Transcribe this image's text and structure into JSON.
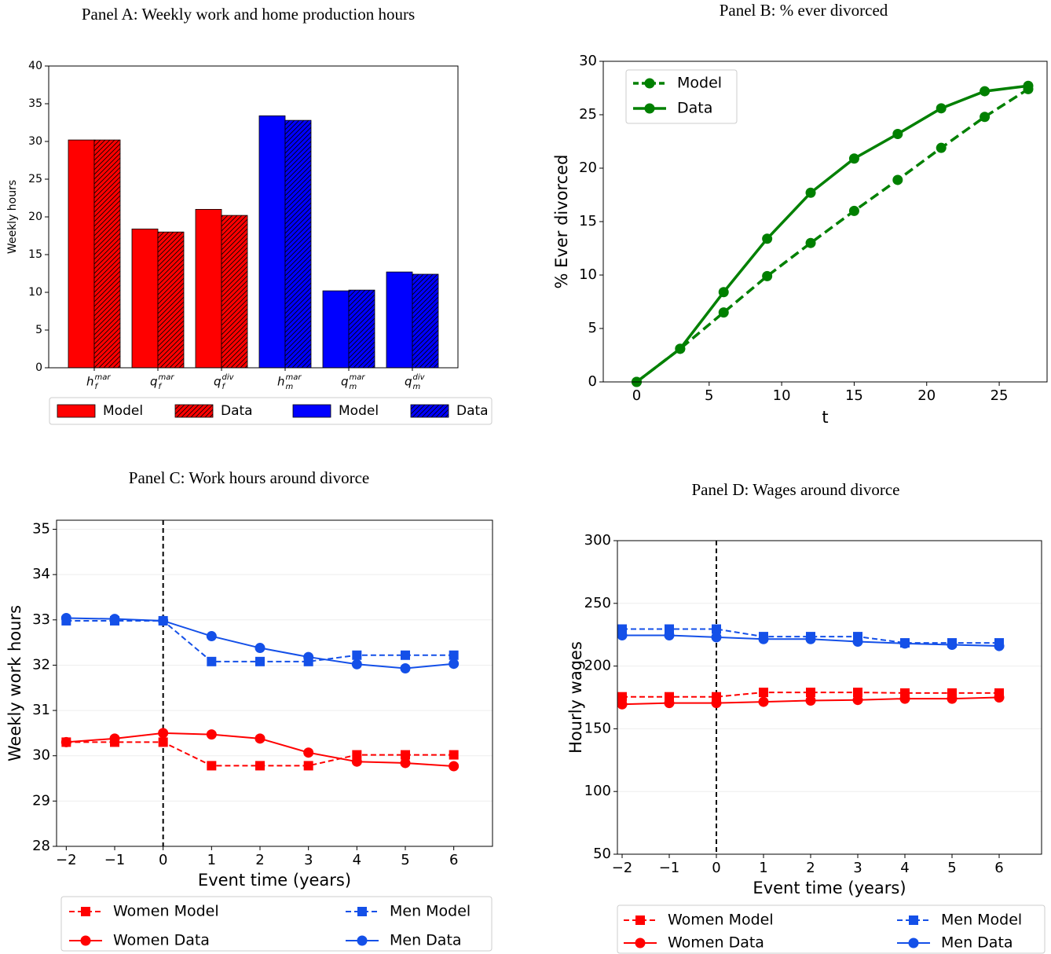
{
  "chart_data": [
    {
      "type": "bar",
      "title": "Panel A: Weekly work and home production hours",
      "ylabel": "Weekly hours",
      "categories": [
        {
          "base": "h",
          "sub": "f",
          "sup": "mar"
        },
        {
          "base": "q",
          "sub": "f",
          "sup": "mar"
        },
        {
          "base": "q",
          "sub": "f",
          "sup": "div"
        },
        {
          "base": "h",
          "sub": "m",
          "sup": "mar"
        },
        {
          "base": "q",
          "sub": "m",
          "sup": "mar"
        },
        {
          "base": "q",
          "sub": "m",
          "sup": "div"
        }
      ],
      "series": [
        {
          "name": "Model",
          "color": "#ff0000",
          "hatch": false,
          "values": [
            30.2,
            18.4,
            21.0,
            null,
            null,
            null
          ]
        },
        {
          "name": "Data",
          "color": "#ff0000",
          "hatch": true,
          "values": [
            30.2,
            18.0,
            20.2,
            null,
            null,
            null
          ]
        },
        {
          "name": "Model",
          "color": "#0000ff",
          "hatch": false,
          "values": [
            null,
            null,
            null,
            33.4,
            10.2,
            12.7
          ]
        },
        {
          "name": "Data",
          "color": "#0000ff",
          "hatch": true,
          "values": [
            null,
            null,
            null,
            32.8,
            10.3,
            12.4
          ]
        }
      ],
      "ylim": [
        0,
        40
      ],
      "yticks": [
        0,
        5,
        10,
        15,
        20,
        25,
        30,
        35,
        40
      ],
      "legend": "lower center"
    },
    {
      "type": "line",
      "title": "Panel B: % ever divorced",
      "xlabel": "t",
      "ylabel": "% Ever divorced",
      "x": [
        0,
        3,
        6,
        9,
        12,
        15,
        18,
        21,
        24,
        27
      ],
      "series": [
        {
          "name": "Model",
          "color": "#008000",
          "linestyle": "dashed",
          "marker": "o",
          "values": [
            0,
            3.1,
            6.5,
            9.9,
            13.0,
            16.0,
            18.9,
            21.9,
            24.8,
            27.4
          ]
        },
        {
          "name": "Data",
          "color": "#008000",
          "linestyle": "solid",
          "marker": "o",
          "values": [
            0,
            3.1,
            8.4,
            13.4,
            17.7,
            20.9,
            23.2,
            25.6,
            27.2,
            27.7
          ]
        }
      ],
      "xlim": [
        -2.3,
        28.3
      ],
      "ylim": [
        0,
        30
      ],
      "xticks": [
        0,
        5,
        10,
        15,
        20,
        25
      ],
      "yticks": [
        0,
        5,
        10,
        15,
        20,
        25,
        30
      ],
      "legend": "upper left"
    },
    {
      "type": "line",
      "title": "Panel C: Work hours around divorce",
      "xlabel": "Event time (years)",
      "ylabel": "Weekly work hours",
      "x": [
        -2,
        -1,
        0,
        1,
        2,
        3,
        4,
        5,
        6
      ],
      "series": [
        {
          "name": "Women Model",
          "color": "#ff0000",
          "linestyle": "dashed",
          "marker": "s",
          "values": [
            30.3,
            30.3,
            30.3,
            29.78,
            29.78,
            29.78,
            30.02,
            30.02,
            30.02
          ]
        },
        {
          "name": "Women Data",
          "color": "#ff0000",
          "linestyle": "solid",
          "marker": "o",
          "values": [
            30.3,
            30.38,
            30.5,
            30.47,
            30.38,
            30.07,
            29.87,
            29.84,
            29.77
          ]
        },
        {
          "name": "Men Model",
          "color": "#1450e8",
          "linestyle": "dashed",
          "marker": "s",
          "values": [
            32.98,
            32.98,
            32.98,
            32.08,
            32.08,
            32.08,
            32.22,
            32.22,
            32.22
          ]
        },
        {
          "name": "Men Data",
          "color": "#1450e8",
          "linestyle": "solid",
          "marker": "o",
          "values": [
            33.04,
            33.02,
            32.98,
            32.64,
            32.38,
            32.18,
            32.02,
            31.93,
            32.03
          ]
        }
      ],
      "xlim": [
        -2.2,
        6.8
      ],
      "ylim": [
        28,
        35.2
      ],
      "xticks": [
        {
          "value": -2,
          "label": "−2"
        },
        {
          "value": -1,
          "label": "−1"
        },
        0,
        1,
        2,
        3,
        4,
        5,
        6
      ],
      "yticks": [
        28,
        29,
        30,
        31,
        32,
        33,
        34,
        35
      ],
      "grid": true,
      "vline": 0,
      "legend": "lower center"
    },
    {
      "type": "line",
      "title": "Panel D: Wages around divorce",
      "xlabel": "Event time (years)",
      "ylabel": "Hourly wages",
      "x": [
        -2,
        -1,
        0,
        1,
        2,
        3,
        4,
        5,
        6
      ],
      "series": [
        {
          "name": "Women Model",
          "color": "#ff0000",
          "linestyle": "dashed",
          "marker": "s",
          "values": [
            175.5,
            175.5,
            175.5,
            179,
            179,
            179,
            178.5,
            178.5,
            178.5
          ]
        },
        {
          "name": "Women Data",
          "color": "#ff0000",
          "linestyle": "solid",
          "marker": "o",
          "values": [
            169.5,
            170.5,
            170.5,
            171.5,
            172.5,
            173,
            174,
            174,
            175
          ]
        },
        {
          "name": "Men Model",
          "color": "#1450e8",
          "linestyle": "dashed",
          "marker": "s",
          "values": [
            229.5,
            229.5,
            229.5,
            223.5,
            223.5,
            223.5,
            218.5,
            218.5,
            218.5
          ]
        },
        {
          "name": "Men Data",
          "color": "#1450e8",
          "linestyle": "solid",
          "marker": "o",
          "values": [
            224.5,
            224.5,
            223,
            221.5,
            221.5,
            219.5,
            218,
            217,
            216
          ]
        }
      ],
      "xlim": [
        -2.1,
        6.9
      ],
      "ylim": [
        50,
        300
      ],
      "xticks": [
        {
          "value": -2,
          "label": "−2"
        },
        {
          "value": -1,
          "label": "−1"
        },
        0,
        1,
        2,
        3,
        4,
        5,
        6
      ],
      "yticks": [
        50,
        100,
        150,
        200,
        250,
        300
      ],
      "grid": true,
      "vline": 0,
      "legend": "lower center"
    }
  ]
}
